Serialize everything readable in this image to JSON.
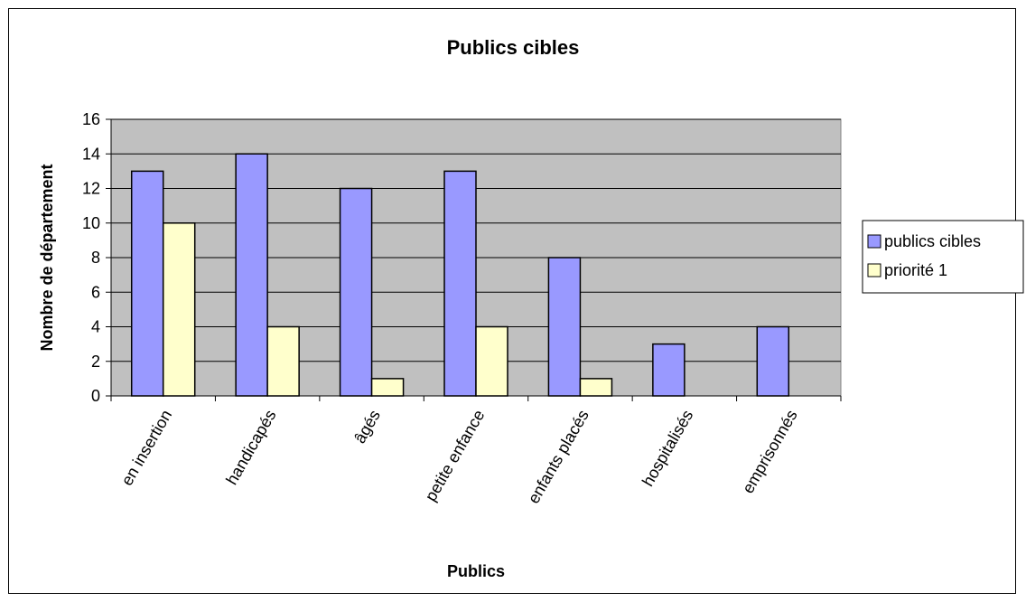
{
  "chart_data": {
    "type": "bar",
    "title": "Publics cibles",
    "xlabel": "Publics",
    "ylabel": "Nombre de département",
    "ylim": [
      0,
      16
    ],
    "ytick_step": 2,
    "grid": true,
    "legend_position": "right",
    "categories": [
      "en insertion",
      "handicapés",
      "âgés",
      "petite enfance",
      "enfants placés",
      "hospitalisés",
      "emprisonnés"
    ],
    "series": [
      {
        "name": "publics cibles",
        "color": "#9999ff",
        "values": [
          13,
          14,
          12,
          13,
          8,
          3,
          4
        ]
      },
      {
        "name": "priorité 1",
        "color": "#ffffcc",
        "values": [
          10,
          4,
          1,
          4,
          1,
          null,
          null
        ]
      }
    ],
    "plot_background": "#c0c0c0"
  }
}
